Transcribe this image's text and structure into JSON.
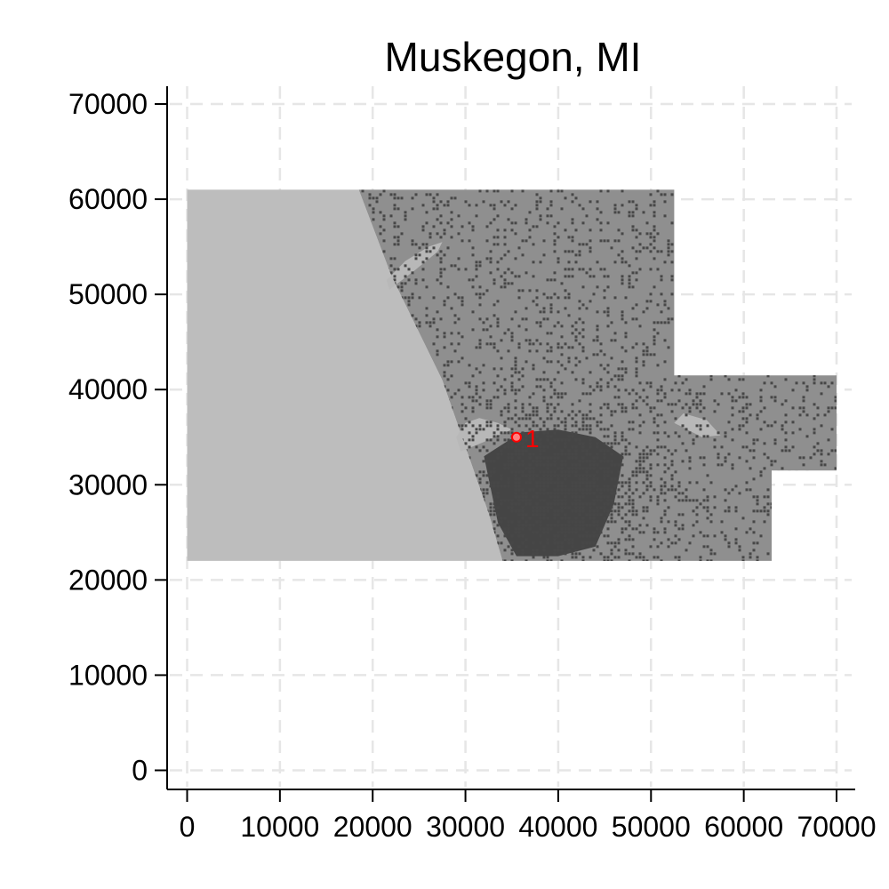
{
  "title": "Muskegon, MI",
  "chart_data": {
    "type": "map",
    "title": "Muskegon, MI",
    "xlabel": "",
    "ylabel": "",
    "xlim": [
      -2000,
      72000
    ],
    "ylim": [
      -2000,
      72000
    ],
    "xticks": [
      0,
      10000,
      20000,
      30000,
      40000,
      50000,
      60000,
      70000
    ],
    "yticks": [
      0,
      10000,
      20000,
      30000,
      40000,
      50000,
      60000,
      70000
    ],
    "xtick_labels": [
      "0",
      "10000",
      "20000",
      "30000",
      "40000",
      "50000",
      "60000",
      "70000"
    ],
    "ytick_labels": [
      "0",
      "10000",
      "20000",
      "30000",
      "40000",
      "50000",
      "60000",
      "70000"
    ],
    "grid": true,
    "regions": [
      {
        "kind": "water",
        "color": "#bdbdbd",
        "polygon": [
          [
            0,
            22000
          ],
          [
            0,
            61000
          ],
          [
            18500,
            61000
          ],
          [
            22000,
            52000
          ],
          [
            27500,
            41000
          ],
          [
            30000,
            34000
          ],
          [
            32500,
            27000
          ],
          [
            34000,
            22000
          ]
        ]
      },
      {
        "kind": "land",
        "color": "#8f8f8f",
        "polygon": [
          [
            18500,
            61000
          ],
          [
            52500,
            61000
          ],
          [
            52500,
            41500
          ],
          [
            70000,
            41500
          ],
          [
            70000,
            31500
          ],
          [
            63000,
            31500
          ],
          [
            63000,
            22000
          ],
          [
            34000,
            22000
          ],
          [
            32500,
            27000
          ],
          [
            30000,
            34000
          ],
          [
            27500,
            41000
          ],
          [
            22000,
            52000
          ]
        ]
      },
      {
        "kind": "urban",
        "color": "#454545",
        "polygon": [
          [
            32000,
            33000
          ],
          [
            36000,
            35500
          ],
          [
            40000,
            35800
          ],
          [
            44000,
            35000
          ],
          [
            47000,
            33000
          ],
          [
            46000,
            28000
          ],
          [
            44000,
            23500
          ],
          [
            40000,
            22500
          ],
          [
            35500,
            22500
          ],
          [
            33500,
            26000
          ]
        ]
      },
      {
        "kind": "lake",
        "color": "#b8b8b8",
        "polygon": [
          [
            29500,
            33500
          ],
          [
            32000,
            34500
          ],
          [
            33800,
            35300
          ],
          [
            35000,
            35800
          ],
          [
            33500,
            36500
          ],
          [
            31500,
            37000
          ],
          [
            30000,
            36500
          ],
          [
            29000,
            35000
          ]
        ]
      },
      {
        "kind": "lake",
        "color": "#b8b8b8",
        "polygon": [
          [
            21800,
            50500
          ],
          [
            24500,
            52500
          ],
          [
            27000,
            54500
          ],
          [
            27500,
            55500
          ],
          [
            26000,
            55000
          ],
          [
            23500,
            53500
          ],
          [
            21500,
            51500
          ]
        ]
      },
      {
        "kind": "lake",
        "color": "#b8b8b8",
        "polygon": [
          [
            52500,
            36500
          ],
          [
            55500,
            35000
          ],
          [
            57500,
            35200
          ],
          [
            56000,
            36800
          ],
          [
            53500,
            37500
          ]
        ]
      }
    ],
    "points": [
      {
        "x": 35500,
        "y": 35000,
        "label": "1",
        "color": "#ff0000"
      }
    ]
  }
}
